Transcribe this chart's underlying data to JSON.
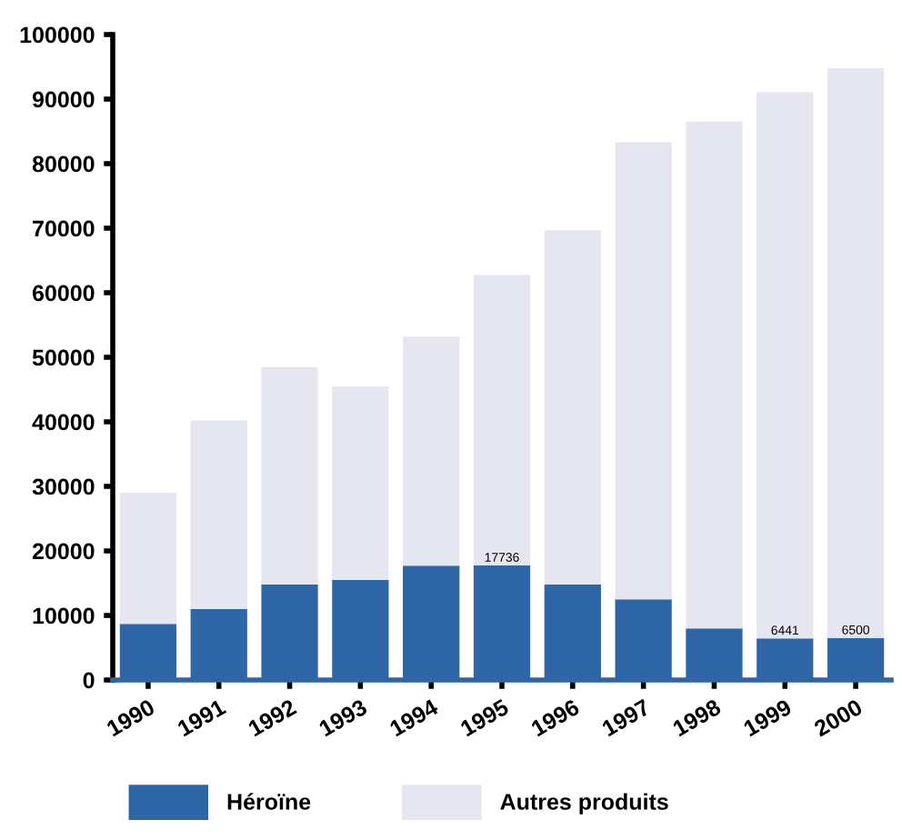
{
  "chart_data": {
    "type": "bar",
    "stacked": true,
    "categories": [
      "1990",
      "1991",
      "1992",
      "1993",
      "1994",
      "1995",
      "1996",
      "1997",
      "1998",
      "1999",
      "2000"
    ],
    "series": [
      {
        "name": "Héroïne",
        "color": "#2e66a8",
        "values": [
          8700,
          11000,
          14800,
          15500,
          17700,
          17736,
          14800,
          12500,
          8000,
          6441,
          6500
        ],
        "value_labels": [
          null,
          null,
          null,
          null,
          null,
          "17736",
          null,
          null,
          null,
          "6441",
          "6500"
        ]
      },
      {
        "name": "Autres produits",
        "color": "#e6e6f0",
        "values": [
          20300,
          29200,
          33700,
          30000,
          35500,
          45000,
          54900,
          70800,
          78500,
          84600,
          88300
        ]
      }
    ],
    "ylim": [
      0,
      100000
    ],
    "yticks": [
      0,
      10000,
      20000,
      30000,
      40000,
      50000,
      60000,
      70000,
      80000,
      90000,
      100000
    ],
    "grid": false,
    "legend": "bottom"
  }
}
